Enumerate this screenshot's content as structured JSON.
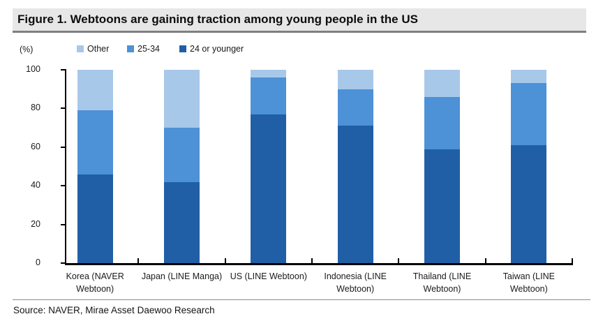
{
  "title": "Figure 1. Webtoons are gaining traction among young people in the US",
  "unit_label": "(%)",
  "legend": {
    "items": [
      {
        "name": "legend-other",
        "label": "Other",
        "color": "#a8c8e9"
      },
      {
        "name": "legend-25-34",
        "label": "25-34",
        "color": "#4d91d7"
      },
      {
        "name": "legend-24-or-younger",
        "label": "24 or younger",
        "color": "#205fa5"
      }
    ]
  },
  "chart_data": {
    "type": "bar",
    "stacked": true,
    "title": "Figure 1. Webtoons are gaining traction among young people in the US",
    "xlabel": "",
    "ylabel": "(%)",
    "ylim": [
      0,
      100
    ],
    "yticks": [
      0,
      20,
      40,
      60,
      80,
      100
    ],
    "grid": false,
    "legend_position": "top",
    "categories": [
      "Korea (NAVER\nWebtoon)",
      "Japan (LINE Manga)",
      "US (LINE Webtoon)",
      "Indonesia (LINE\nWebtoon)",
      "Thailand (LINE\nWebtoon)",
      "Taiwan (LINE\nWebtoon)"
    ],
    "series": [
      {
        "name": "24 or younger",
        "color": "#205fa5",
        "values": [
          46,
          42,
          77,
          71,
          59,
          61
        ]
      },
      {
        "name": "25-34",
        "color": "#4d91d7",
        "values": [
          33,
          28,
          19,
          19,
          27,
          32
        ]
      },
      {
        "name": "Other",
        "color": "#a8c8e9",
        "values": [
          21,
          30,
          4,
          10,
          14,
          7
        ]
      }
    ]
  },
  "source": "Source: NAVER, Mirae Asset Daewoo Research"
}
